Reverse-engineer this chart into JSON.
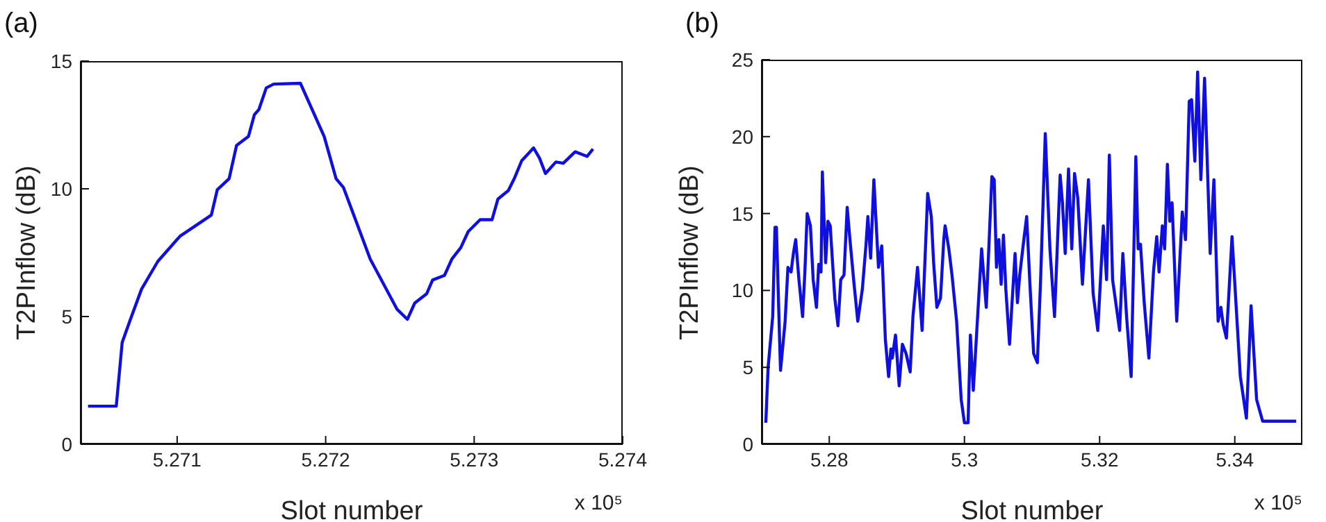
{
  "chart_data": [
    {
      "type": "line",
      "title": "(a)",
      "xlabel": "Slot number",
      "ylabel": "T2PInflow (dB)",
      "annotations": [
        "x 10⁵"
      ],
      "xlim": [
        5.27035,
        5.274
      ],
      "xticks": [
        5.271,
        5.272,
        5.273,
        5.274
      ],
      "ylim": [
        0,
        15
      ],
      "yticks": [
        0,
        5,
        10,
        15
      ],
      "x": [
        5.2704,
        5.27059,
        5.27063,
        5.27068,
        5.27076,
        5.27087,
        5.27102,
        5.27123,
        5.27127,
        5.27135,
        5.2714,
        5.27148,
        5.27152,
        5.27155,
        5.2716,
        5.27165,
        5.27183,
        5.27199,
        5.27207,
        5.27212,
        5.2723,
        5.27248,
        5.27255,
        5.2726,
        5.27268,
        5.27272,
        5.2728,
        5.27285,
        5.27291,
        5.27296,
        5.27304,
        5.27312,
        5.27316,
        5.27323,
        5.27327,
        5.27332,
        5.2734,
        5.27344,
        5.27348,
        5.27355,
        5.2736,
        5.27368,
        5.27376,
        5.2738
      ],
      "series": [
        {
          "color": "#0f0fe0",
          "values": [
            1.49,
            1.49,
            3.99,
            4.8,
            6.07,
            7.16,
            8.15,
            8.97,
            9.96,
            10.4,
            11.7,
            12.05,
            12.9,
            13.1,
            13.95,
            14.1,
            14.13,
            12.05,
            10.4,
            10.05,
            7.25,
            5.29,
            4.89,
            5.53,
            5.89,
            6.43,
            6.61,
            7.25,
            7.7,
            8.33,
            8.79,
            8.79,
            9.6,
            9.93,
            10.4,
            11.1,
            11.6,
            11.2,
            10.6,
            11.05,
            11.0,
            11.45,
            11.27,
            11.56
          ]
        }
      ]
    },
    {
      "type": "line",
      "title": "(b)",
      "xlabel": "Slot number",
      "ylabel": "T2PInflow (dB)",
      "annotations": [
        "x 10⁵"
      ],
      "xlim": [
        5.27,
        5.35
      ],
      "xticks": [
        5.28,
        5.3,
        5.32,
        5.34
      ],
      "ylim": [
        0,
        25
      ],
      "yticks": [
        0,
        5,
        10,
        15,
        20,
        25
      ],
      "x": [
        5.27061,
        5.27095,
        5.27163,
        5.27197,
        5.27218,
        5.27265,
        5.27279,
        5.27347,
        5.27388,
        5.27435,
        5.27469,
        5.27503,
        5.27551,
        5.27605,
        5.27639,
        5.27673,
        5.27721,
        5.27762,
        5.2781,
        5.27844,
        5.27878,
        5.27898,
        5.27946,
        5.2798,
        5.28014,
        5.28082,
        5.28129,
        5.2817,
        5.28218,
        5.28265,
        5.28306,
        5.28367,
        5.28422,
        5.2849,
        5.28544,
        5.28571,
        5.28612,
        5.2866,
        5.28728,
        5.28776,
        5.2883,
        5.28878,
        5.28912,
        5.28932,
        5.2898,
        5.29034,
        5.29082,
        5.29136,
        5.29197,
        5.29238,
        5.29306,
        5.29374,
        5.29456,
        5.2951,
        5.29544,
        5.29592,
        5.29646,
        5.29694,
        5.29714,
        5.29769,
        5.29816,
        5.29884,
        5.29952,
        5.3,
        5.30054,
        5.30088,
        5.30131,
        5.30199,
        5.30254,
        5.30323,
        5.30406,
        5.3044,
        5.30474,
        5.30509,
        5.30543,
        5.30577,
        5.30612,
        5.30667,
        5.30749,
        5.30784,
        5.30818,
        5.30887,
        5.30921,
        5.30969,
        5.31024,
        5.31079,
        5.31127,
        5.31196,
        5.31265,
        5.31333,
        5.31416,
        5.3145,
        5.31491,
        5.3154,
        5.31588,
        5.31629,
        5.31677,
        5.31746,
        5.31835,
        5.31904,
        5.31973,
        5.32055,
        5.32103,
        5.32144,
        5.32192,
        5.32296,
        5.32344,
        5.32399,
        5.32467,
        5.32536,
        5.3257,
        5.32605,
        5.3266,
        5.32729,
        5.32797,
        5.32845,
        5.3288,
        5.32928,
        5.32962,
        5.33003,
        5.33038,
        5.33072,
        5.33141,
        5.33223,
        5.33271,
        5.33326,
        5.33361,
        5.33409,
        5.3345,
        5.33498,
        5.33553,
        5.33636,
        5.33691,
        5.33753,
        5.33794,
        5.33828,
        5.33876,
        5.33959,
        5.34082,
        5.34172,
        5.34241,
        5.34323,
        5.34412,
        5.34907
      ],
      "series": [
        {
          "color": "#0f0fe0",
          "values": [
            1.4,
            5.0,
            8.3,
            14.1,
            14.1,
            6.8,
            4.8,
            8.0,
            11.5,
            11.2,
            12.4,
            13.3,
            10.7,
            8.3,
            11.2,
            15.0,
            14.2,
            10.7,
            8.9,
            11.7,
            11.2,
            17.7,
            11.8,
            14.5,
            14.2,
            9.5,
            7.7,
            10.7,
            11.0,
            15.4,
            13.3,
            10.4,
            8.0,
            10.1,
            13.0,
            14.8,
            12.1,
            17.2,
            11.5,
            12.9,
            6.8,
            4.4,
            6.2,
            5.6,
            7.1,
            3.8,
            6.5,
            5.9,
            4.7,
            8.3,
            11.5,
            7.4,
            16.3,
            14.8,
            11.8,
            8.9,
            9.5,
            13.3,
            14.2,
            12.7,
            11.0,
            8.0,
            2.9,
            1.4,
            1.4,
            7.1,
            3.5,
            8.6,
            12.7,
            8.9,
            17.4,
            17.2,
            11.5,
            13.3,
            10.4,
            13.6,
            10.1,
            6.5,
            12.4,
            9.2,
            11.0,
            13.6,
            14.8,
            10.4,
            5.9,
            5.3,
            10.7,
            20.2,
            12.7,
            8.3,
            17.5,
            15.7,
            12.4,
            17.9,
            12.7,
            17.6,
            16.0,
            10.4,
            17.2,
            9.8,
            7.4,
            14.2,
            10.7,
            18.8,
            10.7,
            7.4,
            12.4,
            8.3,
            4.4,
            18.7,
            12.7,
            13.0,
            9.2,
            5.6,
            11.2,
            13.5,
            11.2,
            14.2,
            12.7,
            18.2,
            14.5,
            15.7,
            8.0,
            15.1,
            13.3,
            22.3,
            22.4,
            18.4,
            24.2,
            17.2,
            23.8,
            12.4,
            17.2,
            8.0,
            8.9,
            7.8,
            6.9,
            13.5,
            4.4,
            1.7,
            9.0,
            2.9,
            1.5,
            1.5
          ]
        }
      ]
    }
  ]
}
